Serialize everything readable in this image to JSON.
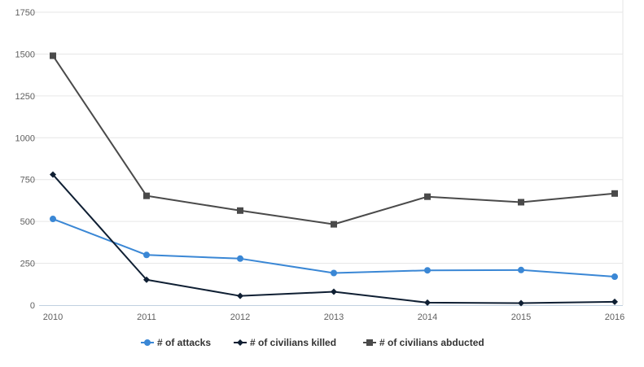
{
  "chart_data": {
    "type": "line",
    "categories": [
      "2010",
      "2011",
      "2012",
      "2013",
      "2014",
      "2015",
      "2016"
    ],
    "ylim": [
      0,
      1750
    ],
    "yticks": [
      "0",
      "250",
      "500",
      "750",
      "1000",
      "1250",
      "1500",
      "1750"
    ],
    "xlabel": "",
    "ylabel": "",
    "grid": true,
    "legend_position": "bottom",
    "series": [
      {
        "name": "# of attacks",
        "color": "#3a87d5",
        "marker": "circle",
        "values": [
          515,
          300,
          278,
          192,
          208,
          210,
          170
        ]
      },
      {
        "name": "# of civilians killed",
        "color": "#0f1f33",
        "marker": "diamond",
        "values": [
          780,
          152,
          55,
          80,
          15,
          12,
          20
        ]
      },
      {
        "name": "# of civilians abducted",
        "color": "#4a4a4a",
        "marker": "square",
        "values": [
          1490,
          653,
          565,
          483,
          648,
          615,
          667
        ]
      }
    ]
  }
}
